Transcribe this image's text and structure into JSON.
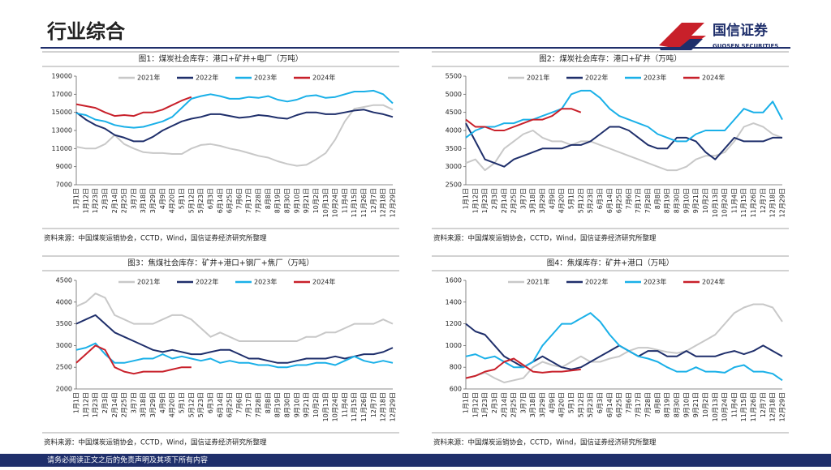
{
  "header": {
    "title": "行业综合",
    "logo_cn": "国信证券",
    "logo_en": "GUOSEN SECURITIES"
  },
  "footer": "请务必阅读正文之后的免责声明及其项下所有内容",
  "chart_data": [
    {
      "type": "line",
      "title": "图1：煤炭社会库存：港口+矿井+电厂（万吨）",
      "source": "资料来源：中国煤炭运销协会，CCTD，Wind，国信证券经济研究所整理",
      "categories": [
        "1月1日",
        "1月12日",
        "1月23日",
        "2月3日",
        "2月14日",
        "2月25日",
        "3月7日",
        "3月18日",
        "3月29日",
        "4月9日",
        "4月20日",
        "5月1日",
        "5月12日",
        "5月23日",
        "6月3日",
        "6月14日",
        "6月25日",
        "7月6日",
        "7月17日",
        "7月28日",
        "8月8日",
        "8月19日",
        "8月30日",
        "9月10日",
        "9月21日",
        "10月2日",
        "10月13日",
        "10月24日",
        "11月4日",
        "11月15日",
        "11月26日",
        "12月7日",
        "12月18日",
        "12月29日"
      ],
      "ylim": [
        7000,
        19000
      ],
      "yticks": [
        7000,
        9000,
        11000,
        13000,
        15000,
        17000,
        19000
      ],
      "series": [
        {
          "name": "2021年",
          "color": "#c8c8c8",
          "values": [
            11200,
            11000,
            11000,
            11500,
            12500,
            11500,
            11000,
            10600,
            10500,
            10500,
            10400,
            10400,
            11000,
            11400,
            11500,
            11300,
            11000,
            10800,
            10500,
            10200,
            10000,
            9600,
            9300,
            9100,
            9200,
            9800,
            10500,
            12000,
            14000,
            15400,
            15600,
            15800,
            15800,
            15300
          ]
        },
        {
          "name": "2022年",
          "color": "#1f2f6b",
          "values": [
            15000,
            14200,
            13600,
            13200,
            12500,
            12200,
            11800,
            11800,
            12300,
            13000,
            13500,
            14000,
            14300,
            14500,
            14800,
            14800,
            14600,
            14400,
            14500,
            14700,
            14600,
            14400,
            14300,
            14700,
            15000,
            15000,
            14800,
            14800,
            15000,
            15200,
            15300,
            15000,
            14800,
            14500
          ]
        },
        {
          "name": "2023年",
          "color": "#1ab0e8",
          "values": [
            14900,
            14700,
            14200,
            14000,
            13600,
            13400,
            13300,
            13400,
            13700,
            14000,
            14500,
            15500,
            16500,
            16800,
            17000,
            16800,
            16500,
            16500,
            16700,
            16600,
            16800,
            16400,
            16200,
            16400,
            16800,
            16900,
            16600,
            16700,
            17000,
            17300,
            17300,
            17400,
            17000,
            16000
          ]
        },
        {
          "name": "2024年",
          "color": "#c8202a",
          "values": [
            15900,
            15700,
            15500,
            15000,
            14600,
            14700,
            14600,
            15000,
            15000,
            15300,
            15800,
            16300,
            16700,
            null,
            null,
            null,
            null,
            null,
            null,
            null,
            null,
            null,
            null,
            null,
            null,
            null,
            null,
            null,
            null,
            null,
            null,
            null,
            null,
            null
          ]
        }
      ]
    },
    {
      "type": "line",
      "title": "图2：煤炭社会库存：港口+矿井（万吨）",
      "source": "资料来源：中国煤炭运销协会，CCTD，Wind，国信证券经济研究所整理",
      "categories": [
        "1月1日",
        "1月12日",
        "1月23日",
        "2月3日",
        "2月14日",
        "2月25日",
        "3月7日",
        "3月18日",
        "3月29日",
        "4月9日",
        "4月20日",
        "5月1日",
        "5月12日",
        "5月23日",
        "6月3日",
        "6月14日",
        "6月25日",
        "7月6日",
        "7月17日",
        "7月28日",
        "8月8日",
        "8月19日",
        "8月30日",
        "9月10日",
        "9月21日",
        "10月2日",
        "10月13日",
        "10月24日",
        "11月4日",
        "11月15日",
        "11月26日",
        "12月7日",
        "12月18日",
        "12月29日"
      ],
      "ylim": [
        2500,
        5500
      ],
      "yticks": [
        2500,
        3000,
        3500,
        4000,
        4500,
        5000,
        5500
      ],
      "series": [
        {
          "name": "2021年",
          "color": "#c8c8c8",
          "values": [
            3100,
            3200,
            2900,
            3100,
            3500,
            3700,
            3900,
            4000,
            3800,
            3700,
            3700,
            3600,
            3700,
            3700,
            3600,
            3500,
            3400,
            3300,
            3200,
            3100,
            3000,
            2900,
            2900,
            3000,
            3200,
            3300,
            3300,
            3400,
            3700,
            4100,
            4200,
            4100,
            3900,
            3800
          ]
        },
        {
          "name": "2022年",
          "color": "#1f2f6b",
          "values": [
            4200,
            3700,
            3200,
            3100,
            3000,
            3200,
            3300,
            3400,
            3500,
            3500,
            3500,
            3600,
            3600,
            3700,
            3900,
            4100,
            4100,
            4000,
            3800,
            3600,
            3500,
            3500,
            3800,
            3800,
            3700,
            3400,
            3200,
            3500,
            3800,
            3700,
            3700,
            3700,
            3800,
            3800
          ]
        },
        {
          "name": "2023年",
          "color": "#1ab0e8",
          "values": [
            3800,
            4000,
            4100,
            4100,
            4200,
            4200,
            4300,
            4300,
            4400,
            4500,
            4600,
            5000,
            5100,
            5100,
            4900,
            4600,
            4400,
            4300,
            4200,
            4100,
            3900,
            3800,
            3700,
            3700,
            3900,
            4000,
            4000,
            4000,
            4300,
            4600,
            4500,
            4500,
            4800,
            4300
          ]
        },
        {
          "name": "2024年",
          "color": "#c8202a",
          "values": [
            4300,
            4100,
            4100,
            4000,
            4000,
            4100,
            4200,
            4300,
            4300,
            4400,
            4600,
            4600,
            4500,
            null,
            null,
            null,
            null,
            null,
            null,
            null,
            null,
            null,
            null,
            null,
            null,
            null,
            null,
            null,
            null,
            null,
            null,
            null,
            null,
            null
          ]
        }
      ]
    },
    {
      "type": "line",
      "title": "图3：焦煤社会库存：矿井+港口+钢厂+焦厂（万吨）",
      "source": "资料来源：中国煤炭运销协会，CCTD，Wind，国信证券经济研究所整理",
      "categories": [
        "1月1日",
        "1月12日",
        "1月23日",
        "2月3日",
        "2月14日",
        "2月25日",
        "3月7日",
        "3月18日",
        "3月29日",
        "4月9日",
        "4月20日",
        "5月1日",
        "5月12日",
        "5月23日",
        "6月3日",
        "6月14日",
        "6月25日",
        "7月6日",
        "7月17日",
        "7月28日",
        "8月8日",
        "8月19日",
        "8月30日",
        "9月10日",
        "9月21日",
        "10月2日",
        "10月13日",
        "10月24日",
        "11月4日",
        "11月15日",
        "11月26日",
        "12月7日",
        "12月18日",
        "12月29日"
      ],
      "ylim": [
        2000,
        4500
      ],
      "yticks": [
        2000,
        2500,
        3000,
        3500,
        4000,
        4500
      ],
      "series": [
        {
          "name": "2021年",
          "color": "#c8c8c8",
          "values": [
            3900,
            4000,
            4200,
            4100,
            3700,
            3600,
            3500,
            3500,
            3500,
            3600,
            3700,
            3700,
            3600,
            3400,
            3200,
            3300,
            3200,
            3100,
            3100,
            3100,
            3100,
            3100,
            3100,
            3100,
            3200,
            3200,
            3300,
            3300,
            3400,
            3500,
            3500,
            3500,
            3600,
            3500
          ]
        },
        {
          "name": "2022年",
          "color": "#1f2f6b",
          "values": [
            3500,
            3600,
            3700,
            3500,
            3300,
            3200,
            3100,
            3000,
            2900,
            2850,
            2900,
            2850,
            2800,
            2800,
            2850,
            2900,
            2900,
            2800,
            2700,
            2700,
            2650,
            2600,
            2600,
            2650,
            2700,
            2700,
            2700,
            2750,
            2700,
            2750,
            2800,
            2800,
            2850,
            2950
          ]
        },
        {
          "name": "2023年",
          "color": "#1ab0e8",
          "values": [
            2900,
            2950,
            3050,
            2800,
            2600,
            2600,
            2650,
            2700,
            2700,
            2800,
            2700,
            2750,
            2700,
            2650,
            2700,
            2600,
            2650,
            2600,
            2600,
            2550,
            2550,
            2500,
            2500,
            2550,
            2550,
            2600,
            2600,
            2550,
            2650,
            2750,
            2650,
            2600,
            2650,
            2600
          ]
        },
        {
          "name": "2024年",
          "color": "#c8202a",
          "values": [
            2600,
            2800,
            3000,
            2900,
            2500,
            2400,
            2350,
            2400,
            2400,
            2400,
            2450,
            2500,
            2500,
            null,
            null,
            null,
            null,
            null,
            null,
            null,
            null,
            null,
            null,
            null,
            null,
            null,
            null,
            null,
            null,
            null,
            null,
            null,
            null,
            null
          ]
        }
      ]
    },
    {
      "type": "line",
      "title": "图4：焦煤库存：矿井+港口（万吨）",
      "source": "资料来源：中国煤炭运销协会，CCTD，Wind，国信证券经济研究所整理",
      "categories": [
        "1月1日",
        "1月12日",
        "1月23日",
        "2月3日",
        "2月14日",
        "2月25日",
        "3月7日",
        "3月18日",
        "3月29日",
        "4月9日",
        "4月20日",
        "5月1日",
        "5月12日",
        "5月23日",
        "6月3日",
        "6月14日",
        "6月25日",
        "7月6日",
        "7月17日",
        "7月28日",
        "8月8日",
        "8月19日",
        "8月30日",
        "9月10日",
        "9月21日",
        "10月2日",
        "10月13日",
        "10月24日",
        "11月4日",
        "11月15日",
        "11月26日",
        "12月7日",
        "12月18日",
        "12月29日"
      ],
      "ylim": [
        600,
        1600
      ],
      "yticks": [
        600,
        800,
        1000,
        1200,
        1400,
        1600
      ],
      "series": [
        {
          "name": "2021年",
          "color": "#c8c8c8",
          "values": [
            700,
            720,
            750,
            700,
            660,
            680,
            700,
            800,
            850,
            820,
            800,
            850,
            900,
            850,
            850,
            880,
            900,
            950,
            980,
            980,
            960,
            940,
            930,
            950,
            1000,
            1050,
            1100,
            1200,
            1300,
            1350,
            1380,
            1380,
            1350,
            1220
          ]
        },
        {
          "name": "2022年",
          "color": "#1f2f6b",
          "values": [
            1200,
            1130,
            1100,
            1000,
            900,
            850,
            800,
            850,
            900,
            850,
            800,
            780,
            800,
            850,
            900,
            950,
            1000,
            950,
            900,
            950,
            950,
            900,
            900,
            950,
            900,
            900,
            900,
            930,
            950,
            920,
            950,
            1000,
            950,
            900
          ]
        },
        {
          "name": "2023年",
          "color": "#1ab0e8",
          "values": [
            900,
            920,
            880,
            900,
            850,
            800,
            800,
            850,
            1000,
            1100,
            1200,
            1200,
            1250,
            1300,
            1220,
            1100,
            1000,
            950,
            900,
            880,
            850,
            800,
            760,
            760,
            800,
            760,
            760,
            750,
            800,
            820,
            760,
            760,
            740,
            680
          ]
        },
        {
          "name": "2024年",
          "color": "#c8202a",
          "values": [
            700,
            720,
            760,
            780,
            850,
            880,
            820,
            760,
            750,
            760,
            760,
            770,
            780,
            null,
            null,
            null,
            null,
            null,
            null,
            null,
            null,
            null,
            null,
            null,
            null,
            null,
            null,
            null,
            null,
            null,
            null,
            null,
            null,
            null
          ]
        }
      ]
    }
  ]
}
